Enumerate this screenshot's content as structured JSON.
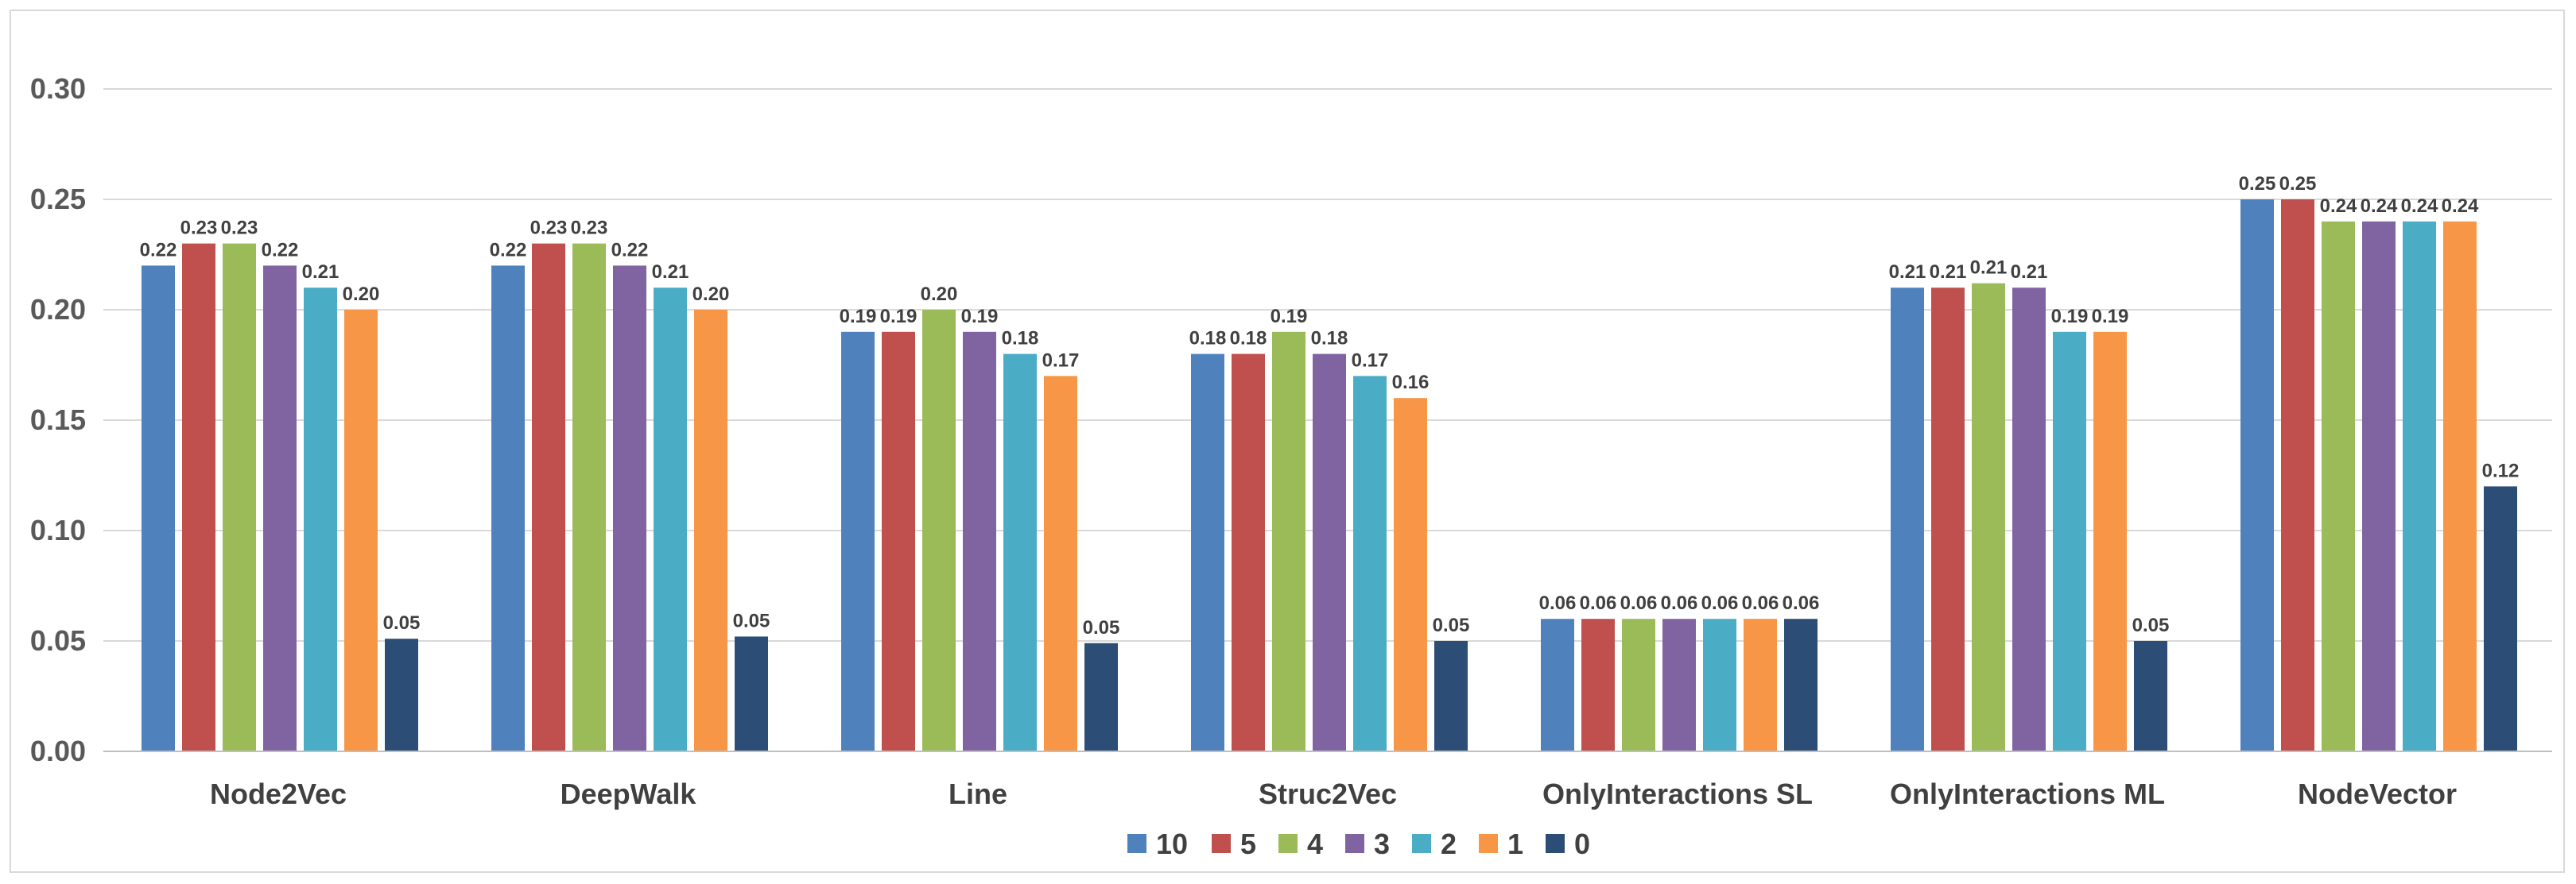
{
  "chart_data": {
    "type": "bar",
    "title": "",
    "xlabel": "",
    "ylabel": "",
    "ylim": [
      0,
      0.3
    ],
    "y_ticks": [
      "0.00",
      "0.05",
      "0.10",
      "0.15",
      "0.20",
      "0.25",
      "0.30"
    ],
    "y_tick_values": [
      0,
      0.05,
      0.1,
      0.15,
      0.2,
      0.25,
      0.3
    ],
    "grid": true,
    "legend_position": "bottom",
    "categories": [
      "Node2Vec",
      "DeepWalk",
      "Line",
      "Struc2Vec",
      "OnlyInteractions SL",
      "OnlyInteractions ML",
      "NodeVector"
    ],
    "series": [
      {
        "name": "10",
        "color": "#4f81bd",
        "values": [
          0.22,
          0.22,
          0.19,
          0.18,
          0.06,
          0.21,
          0.25
        ],
        "labels": [
          "0.22",
          "0.22",
          "0.19",
          "0.18",
          "0.06",
          "0.21",
          "0.25"
        ]
      },
      {
        "name": "5",
        "color": "#c0504d",
        "values": [
          0.23,
          0.23,
          0.19,
          0.18,
          0.06,
          0.21,
          0.25
        ],
        "labels": [
          "0.23",
          "0.23",
          "0.19",
          "0.18",
          "0.06",
          "0.21",
          "0.25"
        ]
      },
      {
        "name": "4",
        "color": "#9bbb59",
        "values": [
          0.23,
          0.23,
          0.2,
          0.19,
          0.06,
          0.212,
          0.24
        ],
        "labels": [
          "0.23",
          "0.23",
          "0.20",
          "0.19",
          "0.06",
          "0.21",
          "0.24"
        ]
      },
      {
        "name": "3",
        "color": "#8064a2",
        "values": [
          0.22,
          0.22,
          0.19,
          0.18,
          0.06,
          0.21,
          0.24
        ],
        "labels": [
          "0.22",
          "0.22",
          "0.19",
          "0.18",
          "0.06",
          "0.21",
          "0.24"
        ]
      },
      {
        "name": "2",
        "color": "#4bacc6",
        "values": [
          0.21,
          0.21,
          0.18,
          0.17,
          0.06,
          0.19,
          0.24
        ],
        "labels": [
          "0.21",
          "0.21",
          "0.18",
          "0.17",
          "0.06",
          "0.19",
          "0.24"
        ]
      },
      {
        "name": "1",
        "color": "#f79646",
        "values": [
          0.2,
          0.2,
          0.17,
          0.16,
          0.06,
          0.19,
          0.24
        ],
        "labels": [
          "0.20",
          "0.20",
          "0.17",
          "0.16",
          "0.06",
          "0.19",
          "0.24"
        ]
      },
      {
        "name": "0",
        "color": "#2c4d75",
        "values": [
          0.051,
          0.052,
          0.049,
          0.05,
          0.06,
          0.05,
          0.12
        ],
        "labels": [
          "0.05",
          "0.05",
          "0.05",
          "0.05",
          "0.06",
          "0.05",
          "0.12"
        ]
      }
    ]
  }
}
